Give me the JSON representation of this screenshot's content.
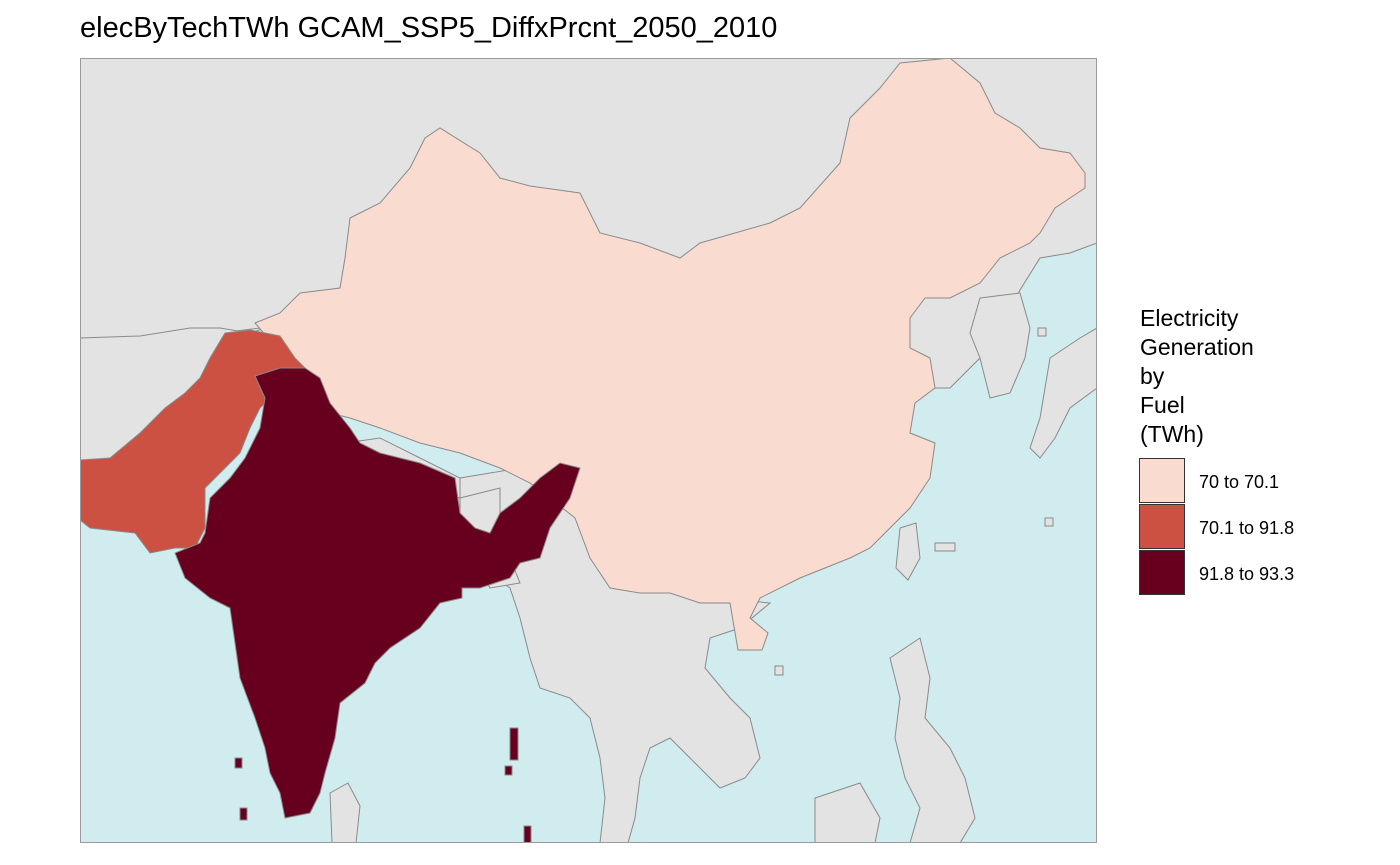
{
  "title": "elecByTechTWh GCAM_SSP5_DiffxPrcnt_2050_2010",
  "colors": {
    "ocean": "#d1ecee",
    "other_land": "#e3e3e3",
    "border": "#8a8a8a",
    "frame": "#9a9a9a"
  },
  "legend": {
    "title_lines": [
      "Electricity",
      "Generation",
      "by",
      "Fuel",
      "(TWh)"
    ],
    "items": [
      {
        "label": "70 to 70.1",
        "color": "#f9dbd0"
      },
      {
        "label": "70.1 to 91.8",
        "color": "#cc5142"
      },
      {
        "label": "91.8 to 93.3",
        "color": "#67001f"
      }
    ]
  },
  "regions": [
    {
      "name": "China",
      "class": "70 to 70.1"
    },
    {
      "name": "Pakistan",
      "class": "70.1 to 91.8"
    },
    {
      "name": "India",
      "class": "91.8 to 93.3"
    }
  ]
}
